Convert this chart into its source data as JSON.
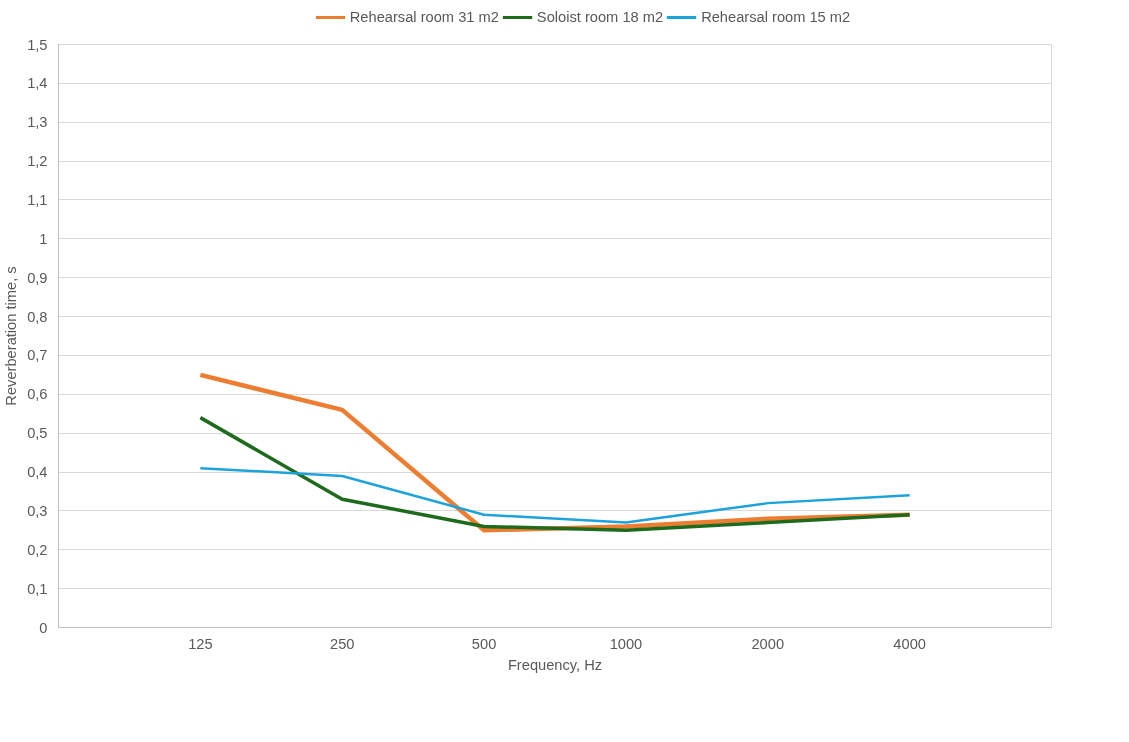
{
  "chart_data": {
    "type": "line",
    "xlabel": "Frequency, Hz",
    "ylabel": "Reverberation time, s",
    "categories": [
      "125",
      "250",
      "500",
      "1000",
      "2000",
      "4000"
    ],
    "series": [
      {
        "name": "Rehearsal room 31 m2",
        "color": "#ed7d31",
        "values": [
          0.65,
          0.56,
          0.25,
          0.26,
          0.28,
          0.29
        ]
      },
      {
        "name": "Soloist room 18 m2",
        "color": "#1e6b1e",
        "values": [
          0.54,
          0.33,
          0.26,
          0.25,
          0.27,
          0.29
        ]
      },
      {
        "name": "Rehearsal room 15 m2",
        "color": "#1ca3dc",
        "values": [
          0.41,
          0.39,
          0.29,
          0.27,
          0.32,
          0.34
        ]
      }
    ],
    "ylim": [
      0,
      1.5
    ],
    "yticks": [
      0,
      {
        "value": 0.1,
        "label": "0,1"
      },
      {
        "value": 0.2,
        "label": "0,2"
      },
      {
        "value": 0.3,
        "label": "0,3"
      },
      {
        "value": 0.4,
        "label": "0,4"
      },
      {
        "value": 0.5,
        "label": "0,5"
      },
      {
        "value": 0.6,
        "label": "0,6"
      },
      {
        "value": 0.7,
        "label": "0,7"
      },
      {
        "value": 0.8,
        "label": "0,8"
      },
      {
        "value": 0.9,
        "label": "0,9"
      },
      1,
      {
        "value": 1.1,
        "label": "1,1"
      },
      {
        "value": 1.2,
        "label": "1,2"
      },
      {
        "value": 1.3,
        "label": "1,3"
      },
      {
        "value": 1.4,
        "label": "1,4"
      },
      {
        "value": 1.5,
        "label": "1,5"
      }
    ],
    "grid": "y",
    "legend": "top",
    "marker": "none",
    "line_style": "solid"
  }
}
